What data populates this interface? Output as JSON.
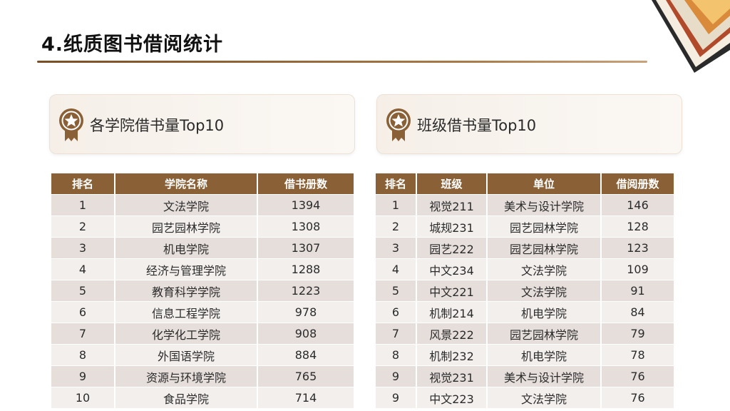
{
  "page": {
    "title": "4.纸质图书借阅统计"
  },
  "colors": {
    "accent_brown": "#8a6137",
    "row_dark": "#e6dedb",
    "row_light": "#f3efed"
  },
  "college_panel": {
    "icon": "medal-icon",
    "label": "各学院借书量Top10",
    "headers": [
      "排名",
      "学院名称",
      "借书册数"
    ],
    "rows": [
      {
        "rank": "1",
        "name": "文法学院",
        "count": "1394"
      },
      {
        "rank": "2",
        "name": "园艺园林学院",
        "count": "1308"
      },
      {
        "rank": "3",
        "name": "机电学院",
        "count": "1307"
      },
      {
        "rank": "4",
        "name": "经济与管理学院",
        "count": "1288"
      },
      {
        "rank": "5",
        "name": "教育科学学院",
        "count": "1223"
      },
      {
        "rank": "6",
        "name": "信息工程学院",
        "count": "978"
      },
      {
        "rank": "7",
        "name": "化学化工学院",
        "count": "908"
      },
      {
        "rank": "8",
        "name": "外国语学院",
        "count": "884"
      },
      {
        "rank": "9",
        "name": "资源与环境学院",
        "count": "765"
      },
      {
        "rank": "10",
        "name": "食品学院",
        "count": "714"
      }
    ]
  },
  "class_panel": {
    "icon": "medal-icon",
    "label": "班级借书量Top10",
    "headers": [
      "排名",
      "班级",
      "单位",
      "借阅册数"
    ],
    "rows": [
      {
        "rank": "1",
        "cls": "视觉211",
        "unit": "美术与设计学院",
        "count": "146"
      },
      {
        "rank": "2",
        "cls": "城规231",
        "unit": "园艺园林学院",
        "count": "128"
      },
      {
        "rank": "3",
        "cls": "园艺222",
        "unit": "园艺园林学院",
        "count": "123"
      },
      {
        "rank": "4",
        "cls": "中文234",
        "unit": "文法学院",
        "count": "109"
      },
      {
        "rank": "5",
        "cls": "中文221",
        "unit": "文法学院",
        "count": "91"
      },
      {
        "rank": "6",
        "cls": "机制214",
        "unit": "机电学院",
        "count": "84"
      },
      {
        "rank": "7",
        "cls": "风景222",
        "unit": "园艺园林学院",
        "count": "79"
      },
      {
        "rank": "8",
        "cls": "机制232",
        "unit": "机电学院",
        "count": "78"
      },
      {
        "rank": "9",
        "cls": "视觉231",
        "unit": "美术与设计学院",
        "count": "76"
      },
      {
        "rank": "9",
        "cls": "中文223",
        "unit": "文法学院",
        "count": "76"
      }
    ]
  }
}
